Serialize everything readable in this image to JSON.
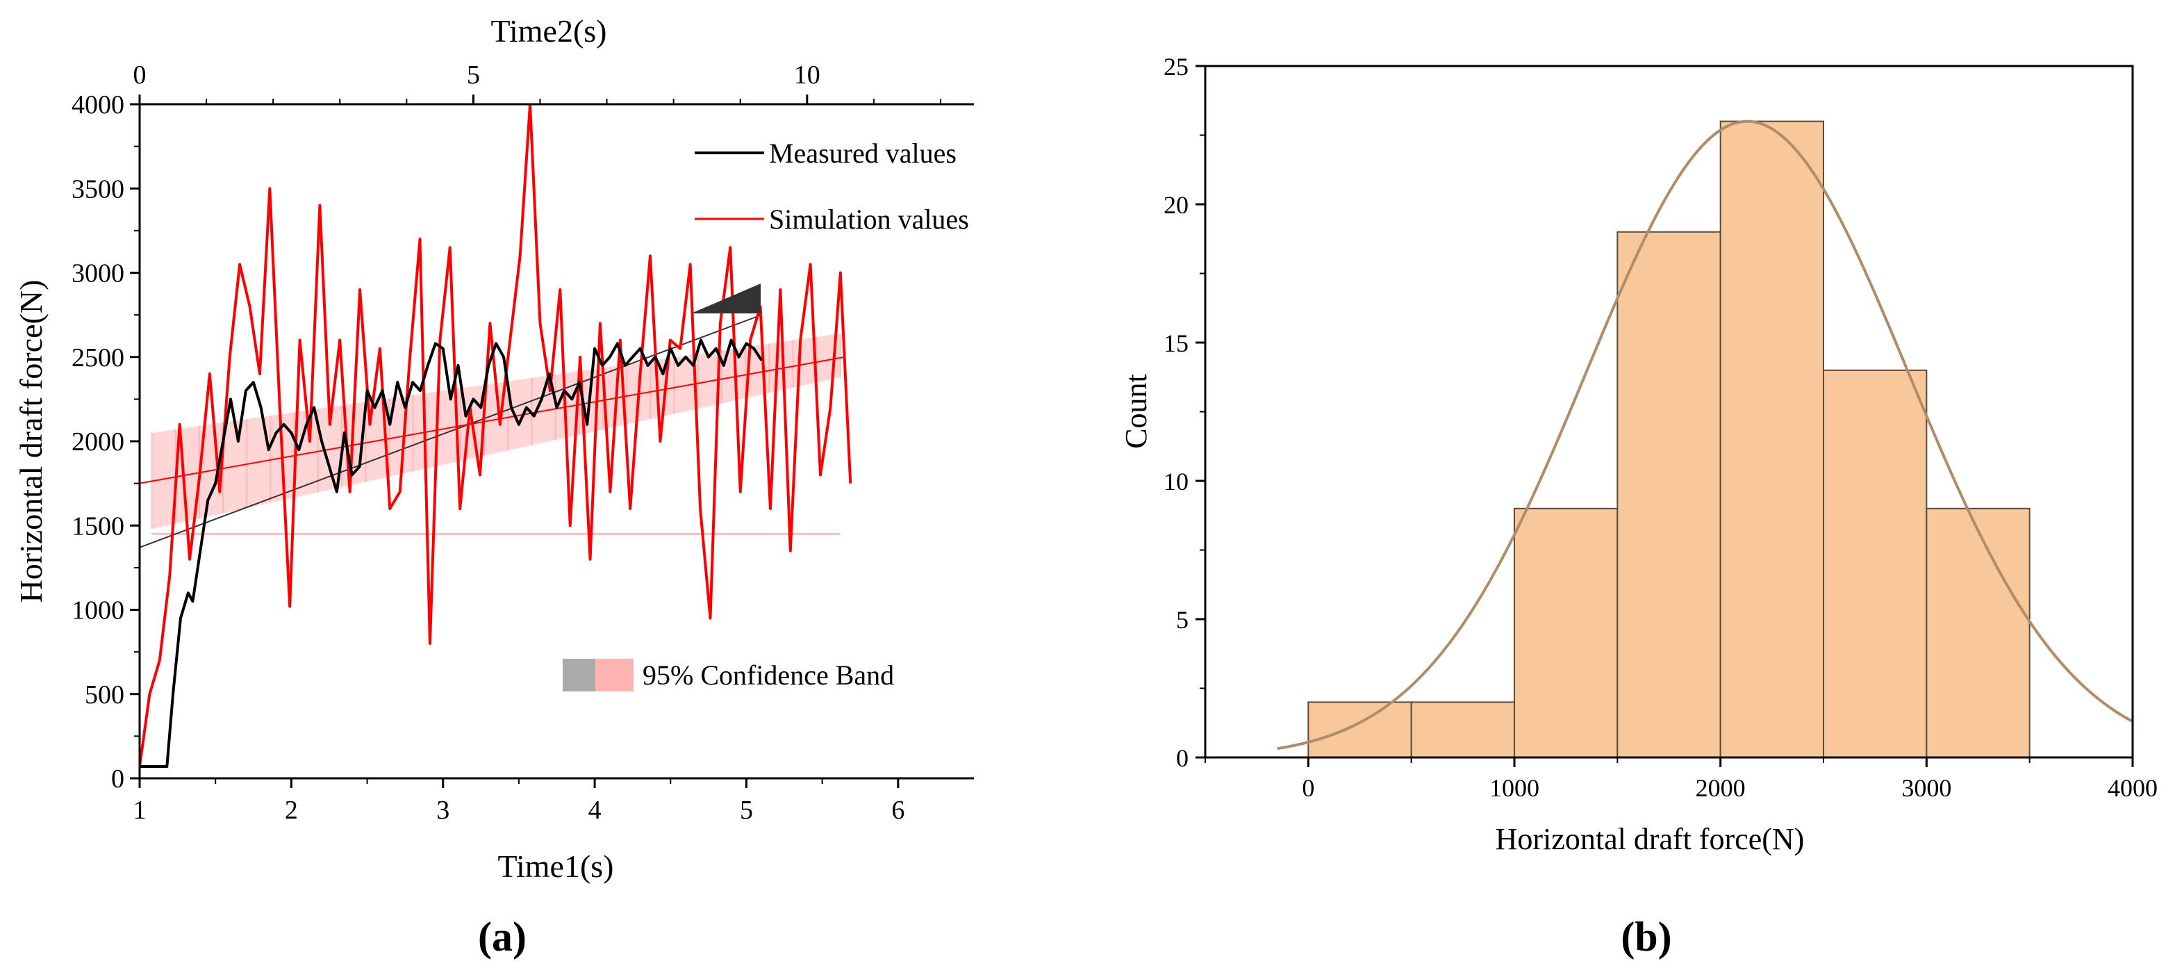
{
  "chart_data": [
    {
      "type": "line",
      "panel_label": "(a)",
      "xlabel": "Time1(s)",
      "ylabel": "Horizontal draft force(N)",
      "top_xlabel": "Time2(s)",
      "xlim": [
        1,
        6.5
      ],
      "ylim": [
        0,
        4000
      ],
      "top_xlim": [
        0,
        12.5
      ],
      "x_ticks": [
        "1",
        "2",
        "3",
        "4",
        "5",
        "6"
      ],
      "y_ticks": [
        "0",
        "500",
        "1000",
        "1500",
        "2000",
        "2500",
        "3000",
        "3500",
        "4000"
      ],
      "top_ticks": [
        "0",
        "5",
        "10"
      ],
      "legend": {
        "measured": "Measured values",
        "simulation": "Simulation values",
        "band": "95% Confidence Band"
      },
      "colors": {
        "measured": "#000000",
        "simulation": "#ff0000",
        "band_red": "#ffb3b3",
        "band_gray": "#aaaaaa"
      },
      "series": [
        {
          "name": "Measured values",
          "axis": "bottom",
          "x": [
            1.0,
            1.18,
            1.22,
            1.27,
            1.32,
            1.35,
            1.4,
            1.45,
            1.5,
            1.55,
            1.6,
            1.65,
            1.7,
            1.75,
            1.8,
            1.85,
            1.9,
            1.95,
            2.0,
            2.05,
            2.1,
            2.15,
            2.2,
            2.25,
            2.3,
            2.35,
            2.4,
            2.45,
            2.5,
            2.55,
            2.6,
            2.65,
            2.7,
            2.75,
            2.8,
            2.85,
            2.9,
            2.95,
            3.0,
            3.05,
            3.1,
            3.15,
            3.2,
            3.25,
            3.3,
            3.35,
            3.4,
            3.45,
            3.5,
            3.55,
            3.6,
            3.65,
            3.7,
            3.75,
            3.8,
            3.85,
            3.9,
            3.95,
            4.0,
            4.05,
            4.1,
            4.15,
            4.2,
            4.25,
            4.3,
            4.35,
            4.4,
            4.45,
            4.5,
            4.55,
            4.6,
            4.65,
            4.7,
            4.75,
            4.8,
            4.85,
            4.9,
            4.95,
            5.0,
            5.05,
            5.1
          ],
          "y": [
            70,
            70,
            500,
            950,
            1100,
            1050,
            1350,
            1650,
            1750,
            2000,
            2250,
            2000,
            2300,
            2350,
            2200,
            1950,
            2050,
            2100,
            2050,
            1950,
            2100,
            2200,
            2000,
            1850,
            1700,
            2050,
            1800,
            1850,
            2300,
            2200,
            2300,
            2100,
            2350,
            2200,
            2350,
            2300,
            2450,
            2580,
            2550,
            2250,
            2450,
            2150,
            2250,
            2200,
            2450,
            2580,
            2500,
            2200,
            2100,
            2200,
            2150,
            2250,
            2400,
            2200,
            2300,
            2250,
            2350,
            2100,
            2550,
            2450,
            2500,
            2580,
            2450,
            2500,
            2550,
            2450,
            2500,
            2400,
            2550,
            2450,
            2500,
            2450,
            2600,
            2500,
            2550,
            2450,
            2600,
            2500,
            2580,
            2550,
            2480
          ]
        },
        {
          "name": "Simulation values",
          "axis": "top",
          "x": [
            0,
            0.15,
            0.3,
            0.45,
            0.6,
            0.75,
            0.9,
            1.05,
            1.2,
            1.35,
            1.5,
            1.65,
            1.8,
            1.95,
            2.1,
            2.25,
            2.4,
            2.55,
            2.7,
            2.85,
            3.0,
            3.15,
            3.3,
            3.45,
            3.6,
            3.75,
            3.9,
            4.05,
            4.2,
            4.35,
            4.5,
            4.65,
            4.8,
            4.95,
            5.1,
            5.25,
            5.4,
            5.55,
            5.7,
            5.85,
            6.0,
            6.15,
            6.3,
            6.45,
            6.6,
            6.75,
            6.9,
            7.05,
            7.2,
            7.35,
            7.5,
            7.65,
            7.8,
            7.95,
            8.1,
            8.25,
            8.4,
            8.55,
            8.7,
            8.85,
            9.0,
            9.15,
            9.3,
            9.45,
            9.6,
            9.75,
            9.9,
            10.05,
            10.2,
            10.35,
            10.5,
            10.65
          ],
          "y": [
            70,
            500,
            700,
            1200,
            2100,
            1300,
            1800,
            2400,
            1700,
            2500,
            3050,
            2800,
            2400,
            3500,
            2200,
            1020,
            2600,
            2000,
            3400,
            2100,
            2600,
            1700,
            2900,
            2100,
            2550,
            1600,
            1700,
            2500,
            3200,
            800,
            2600,
            3150,
            1600,
            2200,
            1800,
            2700,
            2100,
            2600,
            3100,
            4000,
            2700,
            2300,
            2900,
            1500,
            2500,
            1300,
            2700,
            1700,
            2600,
            1600,
            2400,
            3100,
            2000,
            2600,
            2550,
            3050,
            1600,
            950,
            2700,
            3150,
            1700,
            2600,
            2800,
            1600,
            2900,
            1350,
            2600,
            3050,
            1800,
            2200,
            3000,
            1750
          ]
        }
      ],
      "fit_lines": [
        {
          "name": "Measured fit",
          "x": [
            1.0,
            5.1
          ],
          "y": [
            1370,
            2750
          ]
        },
        {
          "name": "Simulation fit",
          "x": [
            1.0,
            5.65
          ],
          "y": [
            1750,
            2500
          ]
        }
      ],
      "confidence_band": {
        "x": [
          1.08,
          5.62
        ],
        "upper": [
          2050,
          2640
        ],
        "lower": [
          1480,
          2380
        ],
        "baseline": 1450
      }
    },
    {
      "type": "histogram",
      "panel_label": "(b)",
      "xlabel": "Horizontal draft force(N)",
      "ylabel": "Count",
      "xlim": [
        -500,
        4000
      ],
      "ylim": [
        0,
        25
      ],
      "x_ticks": [
        "0",
        "1000",
        "2000",
        "3000",
        "4000"
      ],
      "y_ticks": [
        "0",
        "5",
        "10",
        "15",
        "20",
        "25"
      ],
      "bins": [
        {
          "from": 0,
          "to": 500,
          "count": 2
        },
        {
          "from": 500,
          "to": 1000,
          "count": 2
        },
        {
          "from": 1000,
          "to": 1500,
          "count": 9
        },
        {
          "from": 1500,
          "to": 2000,
          "count": 19
        },
        {
          "from": 2000,
          "to": 2500,
          "count": 23
        },
        {
          "from": 2500,
          "to": 3000,
          "count": 14
        },
        {
          "from": 3000,
          "to": 3500,
          "count": 9
        }
      ],
      "normal_fit": {
        "mean": 2130,
        "sd": 780,
        "peak": 23,
        "from": -150,
        "to": 4000
      },
      "colors": {
        "bar_fill": "#f9c89a",
        "bar_edge": "#5a4a3a",
        "curve": "#b08d68"
      }
    }
  ]
}
